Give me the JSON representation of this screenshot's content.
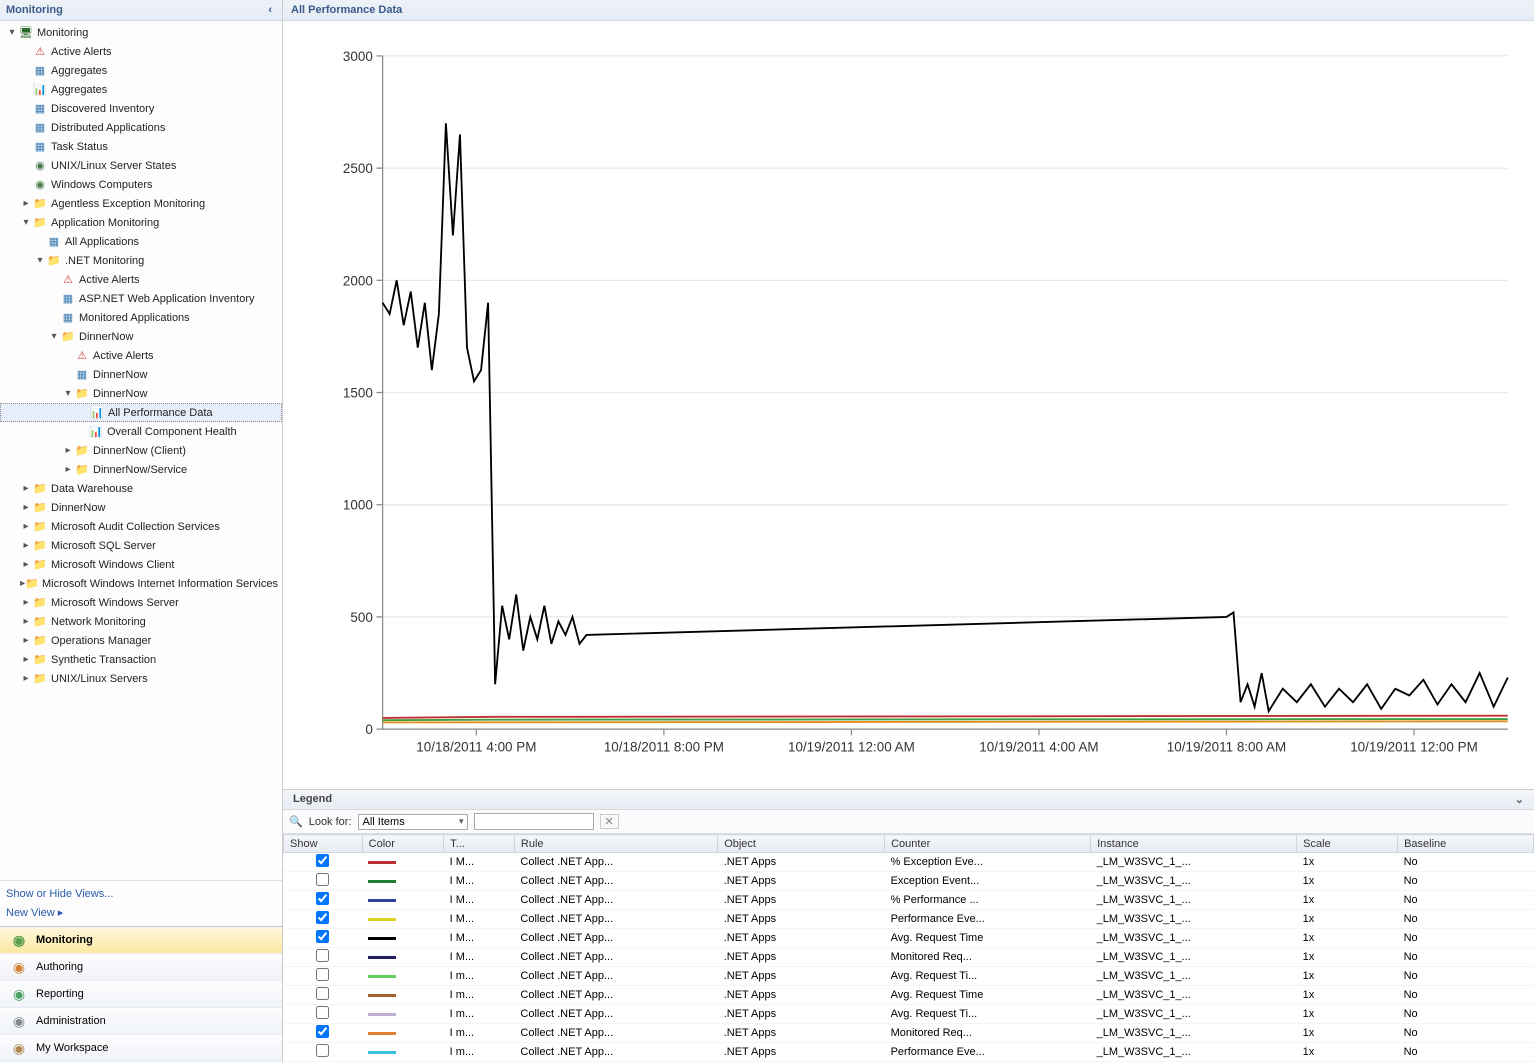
{
  "sidebar": {
    "title": "Monitoring",
    "tree": [
      {
        "indent": 0,
        "tw": "▾",
        "icon": "root",
        "label": "Monitoring"
      },
      {
        "indent": 1,
        "tw": "",
        "icon": "alert",
        "label": "Active Alerts"
      },
      {
        "indent": 1,
        "tw": "",
        "icon": "grid",
        "label": "Aggregates"
      },
      {
        "indent": 1,
        "tw": "",
        "icon": "perf",
        "label": "Aggregates"
      },
      {
        "indent": 1,
        "tw": "",
        "icon": "grid",
        "label": "Discovered Inventory"
      },
      {
        "indent": 1,
        "tw": "",
        "icon": "grid",
        "label": "Distributed Applications"
      },
      {
        "indent": 1,
        "tw": "",
        "icon": "grid",
        "label": "Task Status"
      },
      {
        "indent": 1,
        "tw": "",
        "icon": "state",
        "label": "UNIX/Linux Server States"
      },
      {
        "indent": 1,
        "tw": "",
        "icon": "state",
        "label": "Windows Computers"
      },
      {
        "indent": 1,
        "tw": "▸",
        "icon": "folder",
        "label": "Agentless Exception Monitoring"
      },
      {
        "indent": 1,
        "tw": "▾",
        "icon": "folder-grn",
        "label": "Application Monitoring"
      },
      {
        "indent": 2,
        "tw": "",
        "icon": "grid",
        "label": "All Applications"
      },
      {
        "indent": 2,
        "tw": "▾",
        "icon": "folder-grn",
        "label": ".NET Monitoring"
      },
      {
        "indent": 3,
        "tw": "",
        "icon": "alert",
        "label": "Active Alerts"
      },
      {
        "indent": 3,
        "tw": "",
        "icon": "grid",
        "label": "ASP.NET Web Application Inventory"
      },
      {
        "indent": 3,
        "tw": "",
        "icon": "grid",
        "label": "Monitored Applications"
      },
      {
        "indent": 3,
        "tw": "▾",
        "icon": "folder",
        "label": "DinnerNow"
      },
      {
        "indent": 4,
        "tw": "",
        "icon": "alert",
        "label": "Active Alerts"
      },
      {
        "indent": 4,
        "tw": "",
        "icon": "grid",
        "label": "DinnerNow"
      },
      {
        "indent": 4,
        "tw": "▾",
        "icon": "folder",
        "label": "DinnerNow"
      },
      {
        "indent": 5,
        "tw": "",
        "icon": "perf",
        "label": "All Performance Data",
        "selected": true
      },
      {
        "indent": 5,
        "tw": "",
        "icon": "perf",
        "label": "Overall Component Health"
      },
      {
        "indent": 4,
        "tw": "▸",
        "icon": "folder",
        "label": "DinnerNow (Client)"
      },
      {
        "indent": 4,
        "tw": "▸",
        "icon": "folder",
        "label": "DinnerNow/Service"
      },
      {
        "indent": 1,
        "tw": "▸",
        "icon": "folder",
        "label": "Data Warehouse"
      },
      {
        "indent": 1,
        "tw": "▸",
        "icon": "folder",
        "label": "DinnerNow"
      },
      {
        "indent": 1,
        "tw": "▸",
        "icon": "folder",
        "label": "Microsoft Audit Collection Services"
      },
      {
        "indent": 1,
        "tw": "▸",
        "icon": "folder",
        "label": "Microsoft SQL Server"
      },
      {
        "indent": 1,
        "tw": "▸",
        "icon": "folder",
        "label": "Microsoft Windows Client"
      },
      {
        "indent": 1,
        "tw": "▸",
        "icon": "folder",
        "label": "Microsoft Windows Internet Information Services"
      },
      {
        "indent": 1,
        "tw": "▸",
        "icon": "folder",
        "label": "Microsoft Windows Server"
      },
      {
        "indent": 1,
        "tw": "▸",
        "icon": "folder",
        "label": "Network Monitoring"
      },
      {
        "indent": 1,
        "tw": "▸",
        "icon": "folder",
        "label": "Operations Manager"
      },
      {
        "indent": 1,
        "tw": "▸",
        "icon": "folder",
        "label": "Synthetic Transaction"
      },
      {
        "indent": 1,
        "tw": "▸",
        "icon": "folder",
        "label": "UNIX/Linux Servers"
      }
    ],
    "links": [
      "Show or Hide Views...",
      "New View ▸"
    ],
    "wunderbar": [
      {
        "label": "Monitoring",
        "active": true,
        "color": "#5aa04a"
      },
      {
        "label": "Authoring",
        "active": false,
        "color": "#d08030"
      },
      {
        "label": "Reporting",
        "active": false,
        "color": "#4aa060"
      },
      {
        "label": "Administration",
        "active": false,
        "color": "#808890"
      },
      {
        "label": "My Workspace",
        "active": false,
        "color": "#b08850"
      }
    ]
  },
  "main": {
    "title": "All Performance Data"
  },
  "chart": {
    "ylim": [
      0,
      3000
    ],
    "yticks": [
      0,
      500,
      1000,
      1500,
      2000,
      2500,
      3000
    ],
    "xlabels": [
      "10/18/2011 4:00 PM",
      "10/18/2011 8:00 PM",
      "10/19/2011 12:00 AM",
      "10/19/2011 4:00 AM",
      "10/19/2011 8:00 AM",
      "10/19/2011 12:00 PM"
    ],
    "series": [
      {
        "color": "#000000",
        "width": 1.5,
        "visible": true,
        "data": [
          [
            0,
            1900
          ],
          [
            1,
            1850
          ],
          [
            2,
            2000
          ],
          [
            3,
            1800
          ],
          [
            4,
            1950
          ],
          [
            5,
            1700
          ],
          [
            6,
            1900
          ],
          [
            7,
            1600
          ],
          [
            8,
            1850
          ],
          [
            9,
            2700
          ],
          [
            10,
            2200
          ],
          [
            11,
            2650
          ],
          [
            12,
            1700
          ],
          [
            13,
            1550
          ],
          [
            14,
            1600
          ],
          [
            15,
            1900
          ],
          [
            16,
            200
          ],
          [
            17,
            550
          ],
          [
            18,
            400
          ],
          [
            19,
            600
          ],
          [
            20,
            350
          ],
          [
            21,
            500
          ],
          [
            22,
            400
          ],
          [
            23,
            550
          ],
          [
            24,
            380
          ],
          [
            25,
            480
          ],
          [
            26,
            420
          ],
          [
            27,
            500
          ],
          [
            28,
            380
          ],
          [
            29,
            420
          ],
          [
            120,
            500
          ],
          [
            121,
            520
          ],
          [
            122,
            120
          ],
          [
            123,
            200
          ],
          [
            124,
            100
          ],
          [
            125,
            250
          ],
          [
            126,
            80
          ],
          [
            128,
            180
          ],
          [
            130,
            120
          ],
          [
            132,
            200
          ],
          [
            134,
            100
          ],
          [
            136,
            180
          ],
          [
            138,
            120
          ],
          [
            140,
            200
          ],
          [
            142,
            90
          ],
          [
            144,
            180
          ],
          [
            146,
            150
          ],
          [
            148,
            220
          ],
          [
            150,
            110
          ],
          [
            152,
            200
          ],
          [
            154,
            120
          ],
          [
            156,
            250
          ],
          [
            158,
            100
          ],
          [
            160,
            230
          ]
        ]
      },
      {
        "color": "#c03030",
        "width": 2,
        "visible": true,
        "data": [
          [
            0,
            50
          ],
          [
            16,
            55
          ],
          [
            28,
            55
          ],
          [
            160,
            60
          ]
        ]
      },
      {
        "color": "#e09020",
        "width": 2,
        "visible": true,
        "data": [
          [
            0,
            30
          ],
          [
            160,
            35
          ]
        ]
      },
      {
        "color": "#40a040",
        "width": 2,
        "visible": true,
        "data": [
          [
            0,
            40
          ],
          [
            16,
            42
          ],
          [
            160,
            45
          ]
        ]
      }
    ],
    "xrange": [
      0,
      160
    ],
    "background": "#ffffff",
    "grid_color": "#e8e8e8",
    "axis_color": "#666666"
  },
  "legend": {
    "title": "Legend",
    "lookfor_label": "Look for:",
    "filter_selected": "All Items",
    "columns": [
      "Show",
      "Color",
      "T...",
      "Rule",
      "Object",
      "Counter",
      "Instance",
      "Scale",
      "Baseline"
    ],
    "col_widths": [
      "36px",
      "42px",
      "30px",
      "90px",
      "86px",
      "90px",
      "86px",
      "52px",
      "70px"
    ],
    "rows": [
      {
        "checked": true,
        "color": "#c03030",
        "t": "I M...",
        "rule": "Collect .NET App...",
        "object": ".NET Apps",
        "counter": "% Exception Eve...",
        "instance": "_LM_W3SVC_1_...",
        "scale": "1x",
        "baseline": "No"
      },
      {
        "checked": false,
        "color": "#208030",
        "t": "I M...",
        "rule": "Collect .NET App...",
        "object": ".NET Apps",
        "counter": "Exception Event...",
        "instance": "_LM_W3SVC_1_...",
        "scale": "1x",
        "baseline": "No"
      },
      {
        "checked": true,
        "color": "#3040a0",
        "t": "I M...",
        "rule": "Collect .NET App...",
        "object": ".NET Apps",
        "counter": "% Performance ...",
        "instance": "_LM_W3SVC_1_...",
        "scale": "1x",
        "baseline": "No"
      },
      {
        "checked": true,
        "color": "#e0d020",
        "t": "I M...",
        "rule": "Collect .NET App...",
        "object": ".NET Apps",
        "counter": "Performance Eve...",
        "instance": "_LM_W3SVC_1_...",
        "scale": "1x",
        "baseline": "No"
      },
      {
        "checked": true,
        "color": "#000000",
        "t": "I M...",
        "rule": "Collect .NET App...",
        "object": ".NET Apps",
        "counter": "Avg. Request Time",
        "instance": "_LM_W3SVC_1_...",
        "scale": "1x",
        "baseline": "No"
      },
      {
        "checked": false,
        "color": "#202060",
        "t": "I M...",
        "rule": "Collect .NET App...",
        "object": ".NET Apps",
        "counter": "Monitored Req...",
        "instance": "_LM_W3SVC_1_...",
        "scale": "1x",
        "baseline": "No"
      },
      {
        "checked": false,
        "color": "#60d060",
        "t": "I m...",
        "rule": "Collect .NET App...",
        "object": ".NET Apps",
        "counter": "Avg. Request Ti...",
        "instance": "_LM_W3SVC_1_...",
        "scale": "1x",
        "baseline": "No"
      },
      {
        "checked": false,
        "color": "#a06030",
        "t": "I m...",
        "rule": "Collect .NET App...",
        "object": ".NET Apps",
        "counter": "Avg. Request Time",
        "instance": "_LM_W3SVC_1_...",
        "scale": "1x",
        "baseline": "No"
      },
      {
        "checked": false,
        "color": "#c0b0d8",
        "t": "I m...",
        "rule": "Collect .NET App...",
        "object": ".NET Apps",
        "counter": "Avg. Request Ti...",
        "instance": "_LM_W3SVC_1_...",
        "scale": "1x",
        "baseline": "No"
      },
      {
        "checked": true,
        "color": "#e08030",
        "t": "I m...",
        "rule": "Collect .NET App...",
        "object": ".NET Apps",
        "counter": "Monitored Req...",
        "instance": "_LM_W3SVC_1_...",
        "scale": "1x",
        "baseline": "No"
      },
      {
        "checked": false,
        "color": "#40c0e0",
        "t": "I m...",
        "rule": "Collect .NET App...",
        "object": ".NET Apps",
        "counter": "Performance Eve...",
        "instance": "_LM_W3SVC_1_...",
        "scale": "1x",
        "baseline": "No"
      }
    ]
  }
}
